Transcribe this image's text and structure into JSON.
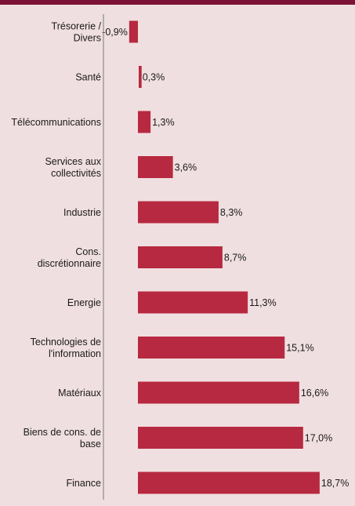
{
  "chart_data": {
    "type": "bar",
    "orientation": "horizontal",
    "categories": [
      [
        "Trésorerie /",
        "Divers"
      ],
      [
        "Santé"
      ],
      [
        "Télécommunications"
      ],
      [
        "Services aux",
        "collectivités"
      ],
      [
        "Industrie"
      ],
      [
        "Cons.",
        "discrétionnaire"
      ],
      [
        "Energie"
      ],
      [
        "Technologies de",
        "l'information"
      ],
      [
        "Matériaux"
      ],
      [
        "Biens de cons. de",
        "base"
      ],
      [
        "Finance"
      ]
    ],
    "values": [
      -0.9,
      0.3,
      1.3,
      3.6,
      8.3,
      8.7,
      11.3,
      15.1,
      16.6,
      17.0,
      18.7
    ],
    "value_labels": [
      "-0,9%",
      "0,3%",
      "1,3%",
      "3,6%",
      "8,3%",
      "8,7%",
      "11,3%",
      "15,1%",
      "16,6%",
      "17,0%",
      "18,7%"
    ],
    "xlim": [
      -2,
      19
    ],
    "grid": false,
    "colors": {
      "bar": "#b72940",
      "background": "#f0dfe0",
      "top_band": "#7a1336",
      "axis": "#8a8a8a"
    }
  }
}
